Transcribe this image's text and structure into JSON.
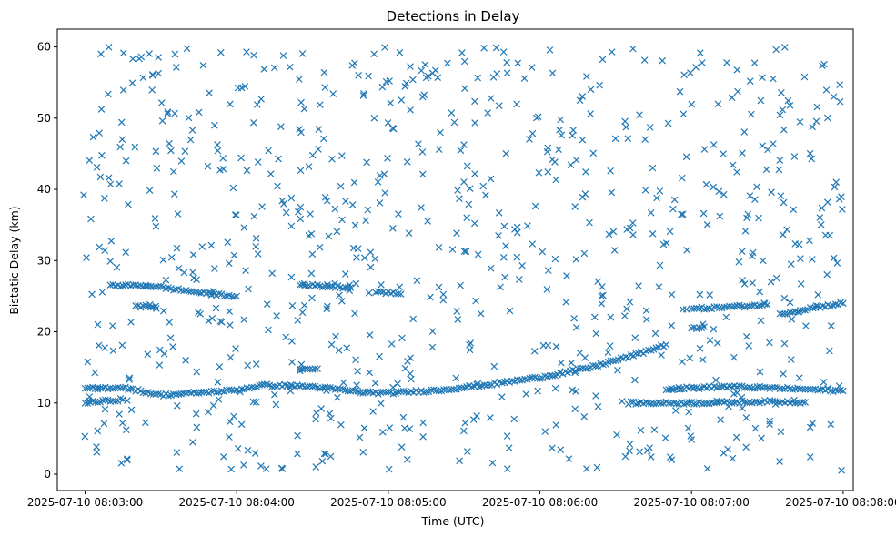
{
  "chart_data": {
    "type": "scatter",
    "title": "Detections in Delay",
    "xlabel": "Time (UTC)",
    "ylabel": "Bistatic Delay (km)",
    "x_range": [
      "2025-07-10 08:02:49",
      "2025-07-10 08:08:04"
    ],
    "x_ticks": [
      "2025-07-10 08:03:00",
      "2025-07-10 08:04:00",
      "2025-07-10 08:05:00",
      "2025-07-10 08:06:00",
      "2025-07-10 08:07:00",
      "2025-07-10 08:08:00"
    ],
    "ylim": [
      -2.3,
      62.5
    ],
    "y_ticks": [
      0,
      10,
      20,
      30,
      40,
      50,
      60
    ],
    "marker": "x",
    "marker_color": "#1f77b4",
    "grid": false,
    "tracks": [
      {
        "points": [
          [
            "2025-07-10 08:03:00",
            12.0
          ],
          [
            "2025-07-10 08:03:15",
            12.2
          ],
          [
            "2025-07-10 08:03:30",
            11.1
          ],
          [
            "2025-07-10 08:04:00",
            11.8
          ],
          [
            "2025-07-10 08:04:10",
            12.5
          ],
          [
            "2025-07-10 08:04:30",
            12.3
          ],
          [
            "2025-07-10 08:04:50",
            11.5
          ],
          [
            "2025-07-10 08:05:00",
            11.4
          ],
          [
            "2025-07-10 08:05:20",
            11.8
          ],
          [
            "2025-07-10 08:05:40",
            12.6
          ],
          [
            "2025-07-10 08:06:00",
            13.6
          ],
          [
            "2025-07-10 08:06:20",
            15.0
          ],
          [
            "2025-07-10 08:06:40",
            17.0
          ],
          [
            "2025-07-10 08:06:50",
            18.2
          ]
        ]
      },
      {
        "points": [
          [
            "2025-07-10 08:03:00",
            10.0
          ],
          [
            "2025-07-10 08:03:15",
            10.5
          ]
        ]
      },
      {
        "points": [
          [
            "2025-07-10 08:03:10",
            26.5
          ],
          [
            "2025-07-10 08:03:25",
            26.5
          ],
          [
            "2025-07-10 08:03:35",
            26.0
          ],
          [
            "2025-07-10 08:03:50",
            25.3
          ],
          [
            "2025-07-10 08:04:00",
            25.0
          ]
        ]
      },
      {
        "points": [
          [
            "2025-07-10 08:03:20",
            23.5
          ],
          [
            "2025-07-10 08:03:28",
            23.6
          ]
        ]
      },
      {
        "points": [
          [
            "2025-07-10 08:04:25",
            14.7
          ],
          [
            "2025-07-10 08:04:32",
            14.8
          ]
        ]
      },
      {
        "points": [
          [
            "2025-07-10 08:04:25",
            26.6
          ],
          [
            "2025-07-10 08:04:45",
            26.2
          ]
        ]
      },
      {
        "points": [
          [
            "2025-07-10 08:04:55",
            25.7
          ],
          [
            "2025-07-10 08:05:05",
            25.3
          ]
        ]
      },
      {
        "points": [
          [
            "2025-07-10 08:06:35",
            10.0
          ],
          [
            "2025-07-10 08:07:00",
            10.0
          ],
          [
            "2025-07-10 08:07:30",
            10.2
          ],
          [
            "2025-07-10 08:07:45",
            10.1
          ]
        ]
      },
      {
        "points": [
          [
            "2025-07-10 08:06:50",
            12.0
          ],
          [
            "2025-07-10 08:07:15",
            12.3
          ],
          [
            "2025-07-10 08:07:40",
            12.0
          ],
          [
            "2025-07-10 08:08:00",
            11.7
          ]
        ]
      },
      {
        "points": [
          [
            "2025-07-10 08:07:00",
            20.5
          ],
          [
            "2025-07-10 08:07:05",
            20.7
          ]
        ]
      },
      {
        "points": [
          [
            "2025-07-10 08:07:00",
            23.2
          ],
          [
            "2025-07-10 08:07:30",
            23.8
          ]
        ]
      },
      {
        "points": [
          [
            "2025-07-10 08:07:35",
            22.5
          ],
          [
            "2025-07-10 08:07:50",
            23.5
          ],
          [
            "2025-07-10 08:08:00",
            24.0
          ]
        ]
      }
    ],
    "clutter": {
      "count": 820,
      "y_range": [
        0.5,
        60
      ],
      "x_range": [
        "2025-07-10 08:02:59",
        "2025-07-10 08:08:00"
      ]
    }
  }
}
